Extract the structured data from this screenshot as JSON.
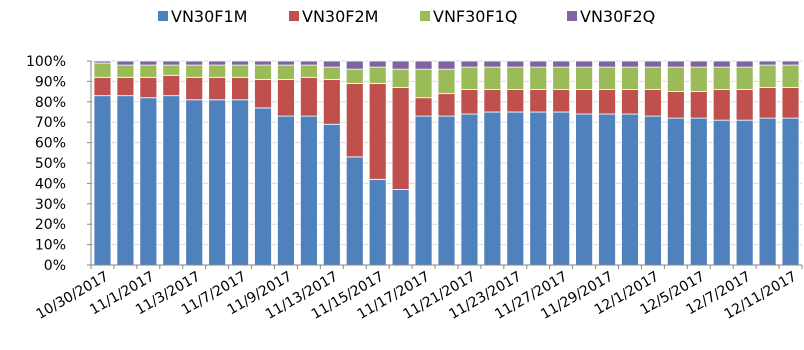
{
  "chart_data": {
    "type": "bar",
    "stacked": true,
    "percent_axis": true,
    "dates": [
      "10/30/2017",
      "10/31/2017",
      "11/1/2017",
      "11/2/2017",
      "11/3/2017",
      "11/6/2017",
      "11/7/2017",
      "11/8/2017",
      "11/9/2017",
      "11/10/2017",
      "11/13/2017",
      "11/14/2017",
      "11/15/2017",
      "11/16/2017",
      "11/17/2017",
      "11/20/2017",
      "11/21/2017",
      "11/22/2017",
      "11/23/2017",
      "11/24/2017",
      "11/27/2017",
      "11/28/2017",
      "11/29/2017",
      "11/30/2017",
      "12/1/2017",
      "12/4/2017",
      "12/5/2017",
      "12/6/2017",
      "12/7/2017",
      "12/8/2017",
      "12/11/2017"
    ],
    "x_tick_labels": [
      "10/30/2017",
      "11/1/2017",
      "11/3/2017",
      "11/7/2017",
      "11/9/2017",
      "11/13/2017",
      "11/15/2017",
      "11/17/2017",
      "11/21/2017",
      "11/23/2017",
      "11/27/2017",
      "11/29/2017",
      "12/1/2017",
      "12/5/2017",
      "12/7/2017",
      "12/11/2017"
    ],
    "y_tick_labels": [
      "0%",
      "10%",
      "20%",
      "30%",
      "40%",
      "50%",
      "60%",
      "70%",
      "80%",
      "90%",
      "100%"
    ],
    "ylim": [
      0,
      100
    ],
    "grid": "horizontal",
    "legend_position": "top",
    "series": [
      {
        "name": "VN30F1M",
        "color": "#4f81bd",
        "values": [
          83,
          83,
          82,
          83,
          81,
          81,
          81,
          77,
          73,
          73,
          69,
          53,
          42,
          37,
          73,
          73,
          74,
          75,
          75,
          75,
          75,
          74,
          74,
          74,
          73,
          72,
          72,
          71,
          71,
          72,
          72
        ]
      },
      {
        "name": "VN30F2M",
        "color": "#c0504d",
        "values": [
          9,
          9,
          10,
          10,
          11,
          11,
          11,
          14,
          18,
          19,
          22,
          36,
          47,
          50,
          9,
          11,
          12,
          11,
          11,
          11,
          11,
          12,
          12,
          12,
          13,
          13,
          13,
          15,
          15,
          15,
          15
        ]
      },
      {
        "name": "VNF30F1Q",
        "color": "#9bbb59",
        "values": [
          7,
          6,
          6,
          5,
          6,
          6,
          6,
          7,
          7,
          6,
          6,
          7,
          8,
          9,
          14,
          12,
          11,
          11,
          11,
          11,
          11,
          11,
          11,
          11,
          11,
          12,
          12,
          11,
          11,
          11,
          11
        ]
      },
      {
        "name": "VN30F2Q",
        "color": "#8064a2",
        "values": [
          1,
          2,
          2,
          2,
          2,
          2,
          2,
          2,
          2,
          2,
          3,
          4,
          3,
          4,
          4,
          4,
          3,
          3,
          3,
          3,
          3,
          3,
          3,
          3,
          3,
          3,
          3,
          3,
          3,
          2,
          2
        ]
      }
    ]
  }
}
